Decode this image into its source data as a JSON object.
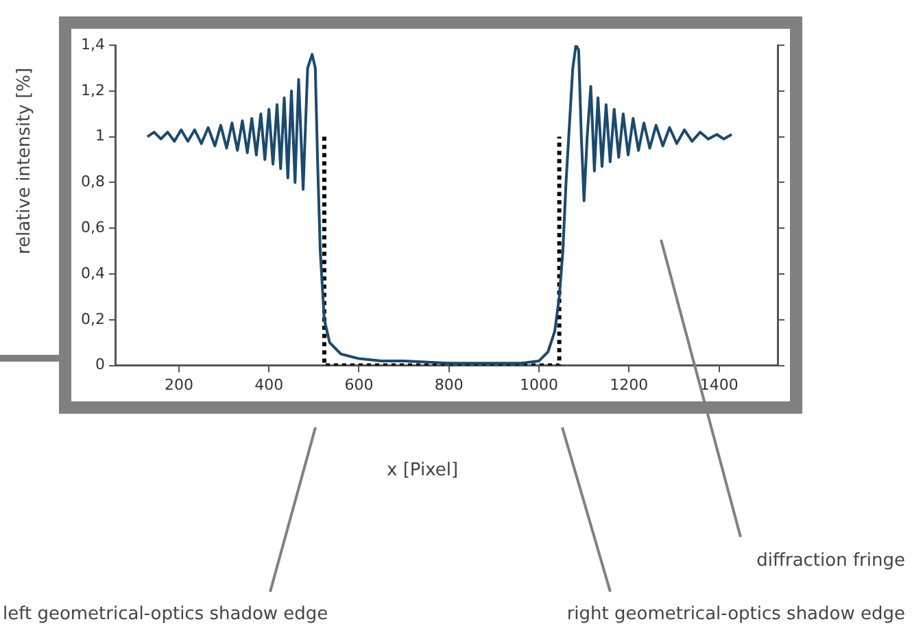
{
  "chart_data": {
    "type": "line",
    "xlabel": "x [Pixel]",
    "ylabel": "relative intensity [%]",
    "annotations": [
      "diffraction fringe",
      "left geometrical-optics shadow edge",
      "right geometrical-optics shadow edge"
    ],
    "xlim": [
      60,
      1530
    ],
    "xticks": [
      200,
      400,
      600,
      800,
      1000,
      1200,
      1400
    ],
    "ylim": [
      0,
      1.4
    ],
    "yticks": [
      {
        "value": 0,
        "label": "0"
      },
      {
        "value": 0.2,
        "label": "0,2"
      },
      {
        "value": 0.4,
        "label": "0,4"
      },
      {
        "value": 0.6,
        "label": "0,6"
      },
      {
        "value": 0.8,
        "label": "0,8"
      },
      {
        "value": 1,
        "label": "1"
      },
      {
        "value": 1.2,
        "label": "1,2"
      },
      {
        "value": 1.4,
        "label": "1,4"
      }
    ],
    "grid": false,
    "legend": false,
    "marker": "none",
    "series": [
      {
        "color": "#1b4a6e",
        "line_style": "solid",
        "x": [
          130,
          145,
          160,
          175,
          190,
          205,
          220,
          235,
          250,
          265,
          280,
          293,
          306,
          318,
          330,
          341,
          352,
          362,
          372,
          382,
          391,
          400,
          409,
          418,
          426,
          434,
          442,
          450,
          458,
          466,
          476,
          486,
          496,
          503,
          508,
          514,
          523,
          535,
          560,
          600,
          650,
          700,
          800,
          900,
          960,
          1000,
          1020,
          1035,
          1045,
          1053,
          1060,
          1066,
          1075,
          1082,
          1088,
          1094,
          1100,
          1107,
          1115,
          1123,
          1131,
          1140,
          1149,
          1158,
          1167,
          1177,
          1187,
          1198,
          1209,
          1221,
          1233,
          1246,
          1260,
          1275,
          1290,
          1306,
          1323,
          1340,
          1358,
          1376,
          1395,
          1410,
          1428
        ],
        "values": [
          1.0,
          1.02,
          0.99,
          1.02,
          0.98,
          1.03,
          0.98,
          1.03,
          0.97,
          1.04,
          0.96,
          1.05,
          0.95,
          1.06,
          0.94,
          1.07,
          0.93,
          1.08,
          0.92,
          1.1,
          0.9,
          1.12,
          0.88,
          1.14,
          0.86,
          1.17,
          0.82,
          1.2,
          0.8,
          1.25,
          0.77,
          1.3,
          1.36,
          1.3,
          0.9,
          0.5,
          0.2,
          0.1,
          0.05,
          0.03,
          0.02,
          0.02,
          0.01,
          0.01,
          0.01,
          0.02,
          0.06,
          0.15,
          0.3,
          0.5,
          0.8,
          1.0,
          1.3,
          1.4,
          1.38,
          1.0,
          0.72,
          1.0,
          1.22,
          0.85,
          1.17,
          0.87,
          1.14,
          0.89,
          1.12,
          0.91,
          1.1,
          0.92,
          1.08,
          0.94,
          1.06,
          0.95,
          1.05,
          0.96,
          1.04,
          0.97,
          1.03,
          0.98,
          1.02,
          0.99,
          1.01,
          0.99,
          1.01
        ]
      },
      {
        "color": "#000000",
        "line_style": "dotted",
        "x": [
          523,
          523,
          1045,
          1045
        ],
        "values": [
          1,
          0,
          0,
          1
        ]
      }
    ]
  }
}
